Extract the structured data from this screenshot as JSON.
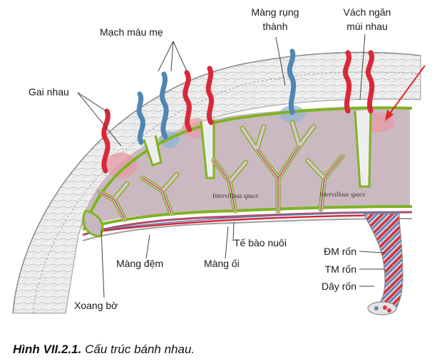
{
  "figure": {
    "labels": {
      "mach_mau_me": "Mạch máu mẹ",
      "mang_rung_thanh_1": "Màng rụng",
      "mang_rung_thanh_2": "thành",
      "vach_ngan_1": "Vách ngăn",
      "vach_ngan_2": "múi nhau",
      "gai_nhau": "Gai nhau",
      "te_bao_nuoi": "Tế bào nuôi",
      "mang_dem": "Màng đệm",
      "mang_oi": "Màng ối",
      "dm_ron": "ĐM rốn",
      "tm_ron": "TM rốn",
      "day_ron": "Dây rốn",
      "xoang_bo": "Xoang bờ"
    },
    "inner_labels": {
      "space_1": "Intervillous space",
      "space_2": "Intervillous space"
    },
    "colors": {
      "artery": "#d8283a",
      "vein": "#4f86b4",
      "chorion_outline": "#7fb321",
      "intervillous": "#c9b7c0",
      "decidua": "#e9e9e9",
      "arrow": "#e0282a"
    }
  },
  "caption": {
    "number": "Hình VII.2.1.",
    "text": "Cấu trúc bánh nhau."
  }
}
